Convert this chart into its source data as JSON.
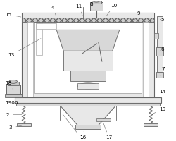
{
  "bg_color": "#ffffff",
  "line_color": "#aaaaaa",
  "dark_line": "#666666",
  "very_dark": "#444444",
  "fill_light": "#e8e8e8",
  "fill_mid": "#d8d8d8",
  "fill_dark": "#c8c8c8",
  "hatch_fill": "#cccccc"
}
